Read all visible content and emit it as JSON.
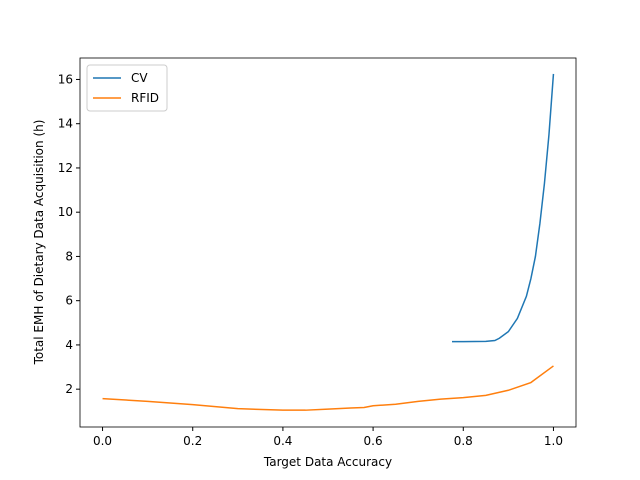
{
  "chart_data": {
    "type": "line",
    "x_label": "Target Data Accuracy",
    "y_label": "Total EMH of Dietary Data Acquisition (h)",
    "xlim": [
      -0.05,
      1.05
    ],
    "ylim": [
      0.29,
      16.97
    ],
    "xticks": [
      {
        "value": 0,
        "label": "0.0"
      },
      0.2,
      0.4,
      0.6,
      0.8,
      {
        "value": 1,
        "label": "1.0"
      }
    ],
    "yticks": [
      2,
      4,
      6,
      8,
      10,
      12,
      14,
      16
    ],
    "legend": "upper left",
    "series": [
      {
        "name": "CV",
        "color": "#1f77b4",
        "x": [
          0.775,
          0.8,
          0.85,
          0.87,
          0.88,
          0.9,
          0.92,
          0.94,
          0.95,
          0.96,
          0.97,
          0.98,
          0.99,
          1.0
        ],
        "values": [
          4.15,
          4.15,
          4.16,
          4.2,
          4.3,
          4.6,
          5.2,
          6.2,
          7.0,
          8.0,
          9.5,
          11.3,
          13.5,
          16.25
        ]
      },
      {
        "name": "RFID",
        "color": "#ff7f0e",
        "x": [
          0,
          0.1,
          0.2,
          0.3,
          0.4,
          0.45,
          0.5,
          0.55,
          0.58,
          0.6,
          0.65,
          0.7,
          0.75,
          0.8,
          0.85,
          0.9,
          0.95,
          1.0
        ],
        "values": [
          1.57,
          1.45,
          1.3,
          1.12,
          1.05,
          1.05,
          1.1,
          1.15,
          1.17,
          1.25,
          1.32,
          1.45,
          1.55,
          1.62,
          1.72,
          1.95,
          2.3,
          3.05
        ]
      }
    ]
  }
}
